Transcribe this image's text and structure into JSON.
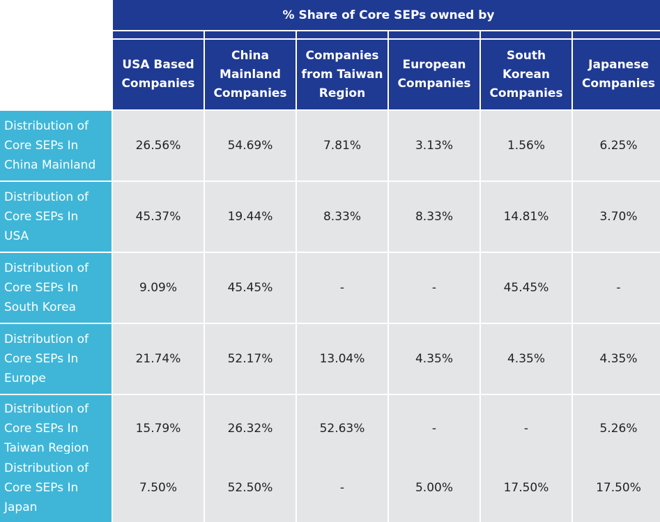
{
  "header": {
    "title": "% Share of Core SEPs owned by",
    "columns": [
      "USA Based\nCompanies",
      "China\nMainland\nCompanies",
      "Companies\nfrom Taiwan\nRegion",
      "European\nCompanies",
      "South\nKorean\nCompanies",
      "Japanese\nCompanies"
    ]
  },
  "rows": [
    {
      "label": "Distribution of\nCore SEPs In\nChina Mainland",
      "values": [
        "26.56%",
        "54.69%",
        "7.81%",
        "3.13%",
        "1.56%",
        "6.25%"
      ]
    },
    {
      "label": "Distribution of\nCore SEPs In\nUSA",
      "values": [
        "45.37%",
        "19.44%",
        "8.33%",
        "8.33%",
        "14.81%",
        "3.70%"
      ]
    },
    {
      "label": "Distribution of\nCore SEPs In\nSouth Korea",
      "values": [
        "9.09%",
        "45.45%",
        "-",
        "-",
        "45.45%",
        "-"
      ]
    },
    {
      "label": "Distribution of\nCore SEPs In\nEurope",
      "values": [
        "21.74%",
        "52.17%",
        "13.04%",
        "4.35%",
        "4.35%",
        "4.35%"
      ]
    },
    {
      "label": "Distribution of\nCore SEPs In\nTaiwan Region",
      "values": [
        "15.79%",
        "26.32%",
        "52.63%",
        "-",
        "-",
        "5.26%"
      ]
    },
    {
      "label": "Distribution of\nCore SEPs In\nJapan",
      "values": [
        "7.50%",
        "52.50%",
        "-",
        "5.00%",
        "17.50%",
        "17.50%"
      ]
    }
  ]
}
